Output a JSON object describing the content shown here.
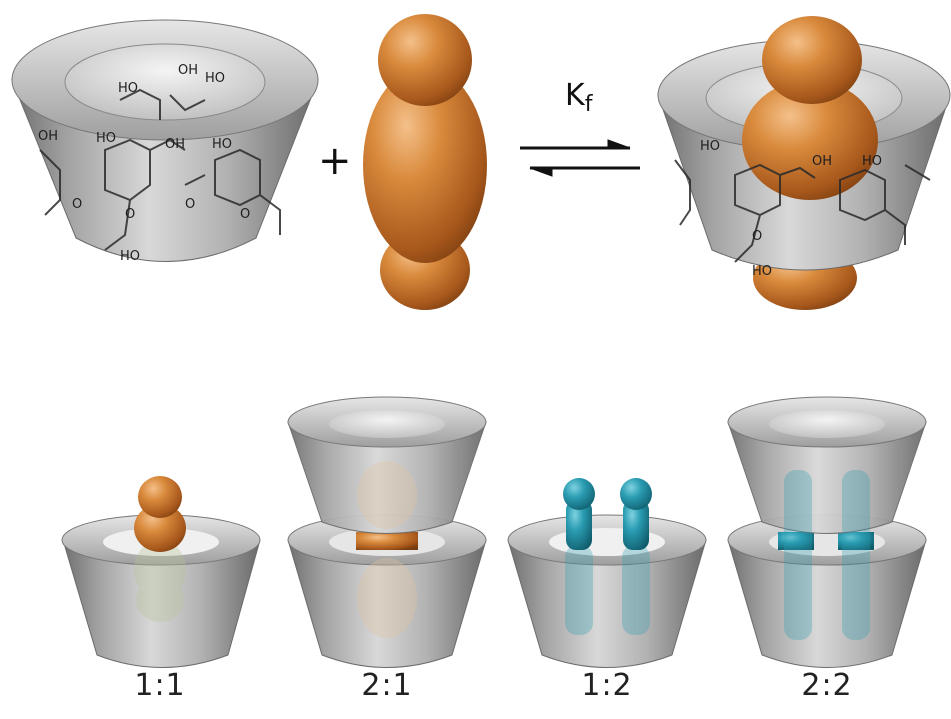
{
  "equation": {
    "plus": "+",
    "constant": {
      "base": "K",
      "subscript": "f"
    }
  },
  "stoichiometries": [
    "1:1",
    "2:1",
    "1:2",
    "2:2"
  ],
  "colors": {
    "host": "#a9a9a9",
    "guest_large": "#c8762c",
    "guest_small": "#1f93a8",
    "background": "#ffffff"
  },
  "structure_labels": [
    "OH",
    "HO",
    "HO",
    "OH",
    "HO",
    "O",
    "O",
    "O",
    "O",
    "HO",
    "HO",
    "OH",
    "HO",
    "HO",
    "HO"
  ]
}
